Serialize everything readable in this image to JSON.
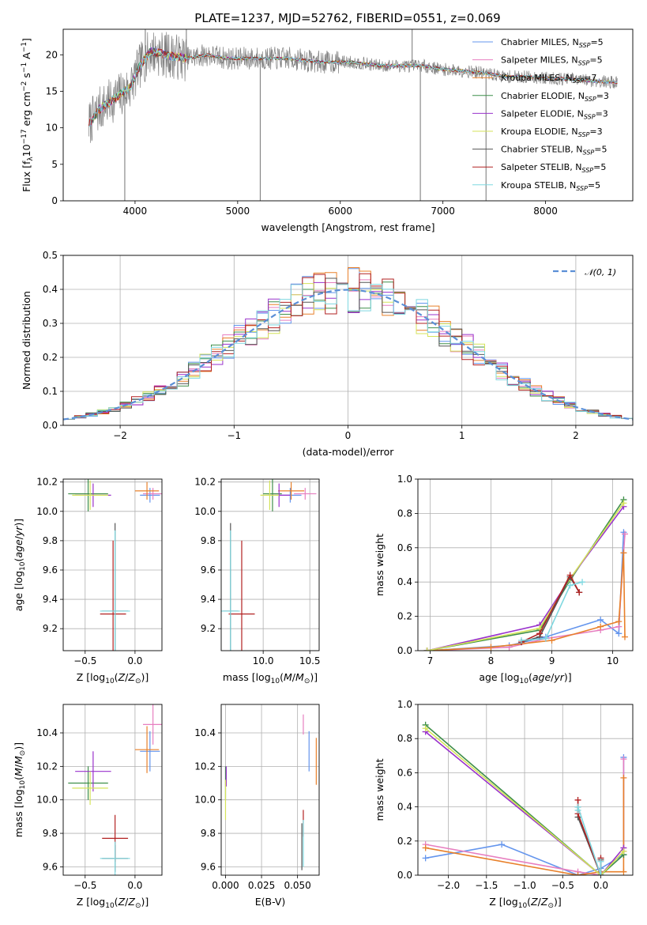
{
  "figure": {
    "title": "PLATE=1237, MJD=52762, FIBERID=0551, z=0.069"
  },
  "colors": {
    "Chabrier MILES": "#6495ed",
    "Salpeter MILES": "#e77fc0",
    "Kroupa MILES": "#e8802a",
    "Chabrier ELODIE": "#3f8f4a",
    "Salpeter ELODIE": "#9932cc",
    "Kroupa ELODIE": "#d4e35a",
    "Chabrier STELIB": "#555555",
    "Salpeter STELIB": "#b22222",
    "Kroupa STELIB": "#7fd8e0",
    "data": "#808080",
    "normal": "#5b8fd6"
  },
  "chart_data": [
    {
      "id": "spectrum",
      "type": "line",
      "xlabel": "wavelength [Angstrom, rest frame]",
      "ylabel": "Flux [f_λ 10^-17 erg cm^-2 s^-1 A^-1]",
      "xlim": [
        3300,
        8850
      ],
      "ylim": [
        0,
        23.5
      ],
      "xticks": [
        4000,
        5000,
        6000,
        7000,
        8000
      ],
      "yticks": [
        0,
        5,
        10,
        15,
        20
      ],
      "legend_position": "top-right",
      "legend": [
        {
          "label": "Chabrier MILES, N_SSP=5",
          "base": "Chabrier MILES, N",
          "sub": "SSP",
          "suffix": "=5",
          "color": "#6495ed"
        },
        {
          "label": "Salpeter MILES, N_SSP=5",
          "base": "Salpeter MILES, N",
          "sub": "SSP",
          "suffix": "=5",
          "color": "#e77fc0"
        },
        {
          "label": "Kroupa MILES, N_SSP=7",
          "base": "Kroupa MILES, N",
          "sub": "SSP",
          "suffix": "=7",
          "color": "#e8802a"
        },
        {
          "label": "Chabrier ELODIE, N_SSP=3",
          "base": "Chabrier ELODIE, N",
          "sub": "SSP",
          "suffix": "=3",
          "color": "#3f8f4a"
        },
        {
          "label": "Salpeter ELODIE, N_SSP=3",
          "base": "Salpeter ELODIE, N",
          "sub": "SSP",
          "suffix": "=3",
          "color": "#9932cc"
        },
        {
          "label": "Kroupa ELODIE, N_SSP=3",
          "base": "Kroupa ELODIE, N",
          "sub": "SSP",
          "suffix": "=3",
          "color": "#d4e35a"
        },
        {
          "label": "Chabrier STELIB, N_SSP=5",
          "base": "Chabrier STELIB, N",
          "sub": "SSP",
          "suffix": "=5",
          "color": "#555555"
        },
        {
          "label": "Salpeter STELIB, N_SSP=5",
          "base": "Salpeter STELIB, N",
          "sub": "SSP",
          "suffix": "=5",
          "color": "#b22222"
        },
        {
          "label": "Kroupa STELIB, N_SSP=5",
          "base": "Kroupa STELIB, N",
          "sub": "SSP",
          "suffix": "=5",
          "color": "#7fd8e0"
        }
      ],
      "continuum": [
        [
          3550,
          10.5
        ],
        [
          3650,
          12.5
        ],
        [
          3800,
          14
        ],
        [
          3950,
          15.5
        ],
        [
          4050,
          18.5
        ],
        [
          4150,
          20.5
        ],
        [
          4300,
          20
        ],
        [
          4500,
          19.5
        ],
        [
          4700,
          20
        ],
        [
          4900,
          19.5
        ],
        [
          5200,
          19.5
        ],
        [
          5500,
          19.5
        ],
        [
          5800,
          19
        ],
        [
          6100,
          19
        ],
        [
          6400,
          18.5
        ],
        [
          6600,
          18.5
        ],
        [
          6800,
          18.5
        ],
        [
          7000,
          18
        ],
        [
          7200,
          17.8
        ],
        [
          7400,
          17.5
        ],
        [
          7600,
          17
        ],
        [
          7800,
          17
        ],
        [
          8000,
          16.8
        ],
        [
          8200,
          16.7
        ],
        [
          8400,
          16.5
        ],
        [
          8600,
          16.3
        ],
        [
          8700,
          16.2
        ]
      ],
      "spikes": [
        [
          3900,
          0
        ],
        [
          5220,
          0
        ],
        [
          6780,
          0
        ],
        [
          7420,
          0
        ],
        [
          4100,
          23.5
        ],
        [
          4500,
          23.5
        ],
        [
          6700,
          23.5
        ]
      ]
    },
    {
      "id": "residuals",
      "type": "step",
      "xlabel": "(data-model)/error",
      "ylabel": "Normed distribution",
      "xlim": [
        -2.5,
        2.5
      ],
      "ylim": [
        0,
        0.5
      ],
      "xticks": [
        -2,
        -1,
        0,
        1,
        2
      ],
      "yticks": [
        0.0,
        0.1,
        0.2,
        0.3,
        0.4,
        0.5
      ],
      "legend_position": "top-right",
      "legend": [
        {
          "label": "𝒩(0, 1)",
          "color": "#5b8fd6",
          "style": "dashed"
        }
      ],
      "bin_width": 0.1
    },
    {
      "id": "age-vs-Z",
      "type": "errorbar",
      "xlabel": "Z [log10(Z/Z⊙)]",
      "ylabel": "age [log10(age/yr)]",
      "xlim": [
        -0.72,
        0.27
      ],
      "ylim": [
        9.05,
        10.22
      ],
      "xticks": [
        -0.5,
        0.0
      ],
      "yticks": [
        9.2,
        9.4,
        9.6,
        9.8,
        10.0,
        10.2
      ],
      "points": [
        {
          "model": "Chabrier MILES",
          "x": 0.15,
          "y": 10.11,
          "xerr": 0.1,
          "yerr": 0.05
        },
        {
          "model": "Salpeter MILES",
          "x": 0.18,
          "y": 10.12,
          "xerr": 0.1,
          "yerr": 0.04
        },
        {
          "model": "Kroupa MILES",
          "x": 0.12,
          "y": 10.14,
          "xerr": 0.12,
          "yerr": 0.06
        },
        {
          "model": "Chabrier ELODIE",
          "x": -0.47,
          "y": 10.12,
          "xerr": 0.2,
          "yerr": 0.12
        },
        {
          "model": "Salpeter ELODIE",
          "x": -0.42,
          "y": 10.11,
          "xerr": 0.18,
          "yerr": 0.08
        },
        {
          "model": "Kroupa ELODIE",
          "x": -0.45,
          "y": 10.11,
          "xerr": 0.18,
          "yerr": 0.1
        },
        {
          "model": "Chabrier STELIB",
          "x": -0.2,
          "y": 9.32,
          "xerr": 0.13,
          "yerr": 0.6
        },
        {
          "model": "Salpeter STELIB",
          "x": -0.22,
          "y": 9.3,
          "xerr": 0.13,
          "yerr": 0.5
        },
        {
          "model": "Kroupa STELIB",
          "x": -0.2,
          "y": 9.32,
          "xerr": 0.15,
          "yerr": 0.55
        }
      ]
    },
    {
      "id": "age-vs-mass",
      "type": "errorbar",
      "xlabel": "mass [log10(M/M⊙)]",
      "ylabel": "",
      "xlim": [
        9.55,
        10.6
      ],
      "ylim": [
        9.05,
        10.22
      ],
      "xticks": [
        10.0,
        10.5
      ],
      "yticks": [
        9.2,
        9.4,
        9.6,
        9.8,
        10.0,
        10.2
      ],
      "points": [
        {
          "model": "Chabrier MILES",
          "x": 10.29,
          "y": 10.11,
          "xerr": 0.12,
          "yerr": 0.05
        },
        {
          "model": "Salpeter MILES",
          "x": 10.45,
          "y": 10.12,
          "xerr": 0.12,
          "yerr": 0.04
        },
        {
          "model": "Kroupa MILES",
          "x": 10.3,
          "y": 10.14,
          "xerr": 0.14,
          "yerr": 0.06
        },
        {
          "model": "Chabrier ELODIE",
          "x": 10.1,
          "y": 10.12,
          "xerr": 0.1,
          "yerr": 0.12
        },
        {
          "model": "Salpeter ELODIE",
          "x": 10.17,
          "y": 10.11,
          "xerr": 0.12,
          "yerr": 0.08
        },
        {
          "model": "Kroupa ELODIE",
          "x": 10.07,
          "y": 10.11,
          "xerr": 0.1,
          "yerr": 0.1
        },
        {
          "model": "Chabrier STELIB",
          "x": 9.65,
          "y": 9.32,
          "xerr": 0.08,
          "yerr": 0.6
        },
        {
          "model": "Salpeter STELIB",
          "x": 9.77,
          "y": 9.3,
          "xerr": 0.14,
          "yerr": 0.5
        },
        {
          "model": "Kroupa STELIB",
          "x": 9.65,
          "y": 9.32,
          "xerr": 0.1,
          "yerr": 0.55
        }
      ]
    },
    {
      "id": "weight-vs-age",
      "type": "line",
      "xlabel": "age [log10(age/yr)]",
      "ylabel": "mass weight",
      "xlim": [
        6.8,
        10.33
      ],
      "ylim": [
        0,
        1.0
      ],
      "xticks": [
        7,
        8,
        9,
        10
      ],
      "yticks": [
        0.0,
        0.2,
        0.4,
        0.6,
        0.8,
        1.0
      ],
      "series": [
        {
          "model": "Chabrier MILES",
          "x": [
            6.95,
            8.3,
            8.9,
            9.8,
            10.1,
            10.18
          ],
          "y": [
            0.0,
            0.03,
            0.08,
            0.18,
            0.1,
            0.69
          ]
        },
        {
          "model": "Salpeter MILES",
          "x": [
            6.95,
            8.3,
            8.9,
            9.8,
            10.1,
            10.2
          ],
          "y": [
            0.0,
            0.02,
            0.07,
            0.12,
            0.14,
            0.68
          ]
        },
        {
          "model": "Kroupa MILES",
          "x": [
            6.95,
            8.0,
            9.0,
            9.8,
            10.1,
            10.18,
            10.2
          ],
          "y": [
            0.0,
            0.02,
            0.06,
            0.14,
            0.17,
            0.57,
            0.08
          ]
        },
        {
          "model": "Chabrier ELODIE",
          "x": [
            6.95,
            8.8,
            9.3,
            10.18
          ],
          "y": [
            0.0,
            0.12,
            0.41,
            0.88
          ]
        },
        {
          "model": "Salpeter ELODIE",
          "x": [
            6.95,
            8.8,
            9.3,
            10.18
          ],
          "y": [
            0.0,
            0.15,
            0.42,
            0.84
          ]
        },
        {
          "model": "Kroupa ELODIE",
          "x": [
            6.95,
            8.8,
            9.3,
            10.18
          ],
          "y": [
            0.0,
            0.13,
            0.42,
            0.86
          ]
        },
        {
          "model": "Chabrier STELIB",
          "x": [
            8.5,
            8.8,
            9.3,
            9.45
          ],
          "y": [
            0.05,
            0.08,
            0.43,
            0.34
          ]
        },
        {
          "model": "Salpeter STELIB",
          "x": [
            8.5,
            8.8,
            9.3,
            9.45
          ],
          "y": [
            0.05,
            0.1,
            0.44,
            0.34
          ]
        },
        {
          "model": "Kroupa STELIB",
          "x": [
            8.5,
            8.9,
            9.3,
            9.5
          ],
          "y": [
            0.06,
            0.07,
            0.38,
            0.4
          ]
        }
      ]
    },
    {
      "id": "mass-vs-Z",
      "type": "errorbar",
      "xlabel": "Z [log10(Z/Z⊙)]",
      "ylabel": "mass [log10(M/M⊙)]",
      "xlim": [
        -0.72,
        0.27
      ],
      "ylim": [
        9.55,
        10.57
      ],
      "xticks": [
        -0.5,
        0.0
      ],
      "yticks": [
        9.6,
        9.8,
        10.0,
        10.2,
        10.4
      ],
      "points": [
        {
          "model": "Chabrier MILES",
          "x": 0.15,
          "y": 10.29,
          "xerr": 0.1,
          "yerr": 0.12
        },
        {
          "model": "Salpeter MILES",
          "x": 0.18,
          "y": 10.45,
          "xerr": 0.1,
          "yerr": 0.12
        },
        {
          "model": "Kroupa MILES",
          "x": 0.12,
          "y": 10.3,
          "xerr": 0.12,
          "yerr": 0.14
        },
        {
          "model": "Chabrier ELODIE",
          "x": -0.47,
          "y": 10.1,
          "xerr": 0.2,
          "yerr": 0.1
        },
        {
          "model": "Salpeter ELODIE",
          "x": -0.42,
          "y": 10.17,
          "xerr": 0.18,
          "yerr": 0.12
        },
        {
          "model": "Kroupa ELODIE",
          "x": -0.45,
          "y": 10.07,
          "xerr": 0.18,
          "yerr": 0.1
        },
        {
          "model": "Chabrier STELIB",
          "x": -0.2,
          "y": 9.65,
          "xerr": 0.13,
          "yerr": 0.08
        },
        {
          "model": "Salpeter STELIB",
          "x": -0.2,
          "y": 9.77,
          "xerr": 0.13,
          "yerr": 0.14
        },
        {
          "model": "Kroupa STELIB",
          "x": -0.2,
          "y": 9.65,
          "xerr": 0.15,
          "yerr": 0.1
        }
      ]
    },
    {
      "id": "mass-vs-ebv",
      "type": "errorbar",
      "xlabel": "E(B-V)",
      "ylabel": "",
      "xlim": [
        -0.003,
        0.065
      ],
      "ylim": [
        9.55,
        10.57
      ],
      "xticks": [
        0.0,
        0.025,
        0.05
      ],
      "yticks": [
        9.6,
        9.8,
        10.0,
        10.2,
        10.4
      ],
      "points": [
        {
          "model": "Chabrier MILES",
          "x": 0.058,
          "y": 10.29,
          "xerr": 0.0,
          "yerr": 0.12
        },
        {
          "model": "Salpeter MILES",
          "x": 0.054,
          "y": 10.45,
          "xerr": 0.0,
          "yerr": 0.06
        },
        {
          "model": "Kroupa MILES",
          "x": 0.063,
          "y": 10.23,
          "xerr": 0.0,
          "yerr": 0.14
        },
        {
          "model": "Chabrier ELODIE",
          "x": 0.0,
          "y": 10.1,
          "xerr": 0.0,
          "yerr": 0.1
        },
        {
          "model": "Salpeter ELODIE",
          "x": 0.0005,
          "y": 10.14,
          "xerr": 0.0,
          "yerr": 0.06
        },
        {
          "model": "Kroupa ELODIE",
          "x": 0.0,
          "y": 10.0,
          "xerr": 0.0,
          "yerr": 0.12
        },
        {
          "model": "Chabrier STELIB",
          "x": 0.053,
          "y": 9.72,
          "xerr": 0.0,
          "yerr": 0.14
        },
        {
          "model": "Salpeter STELIB",
          "x": 0.054,
          "y": 9.86,
          "xerr": 0.0,
          "yerr": 0.08
        },
        {
          "model": "Kroupa STELIB",
          "x": 0.054,
          "y": 9.74,
          "xerr": 0.0,
          "yerr": 0.14
        }
      ]
    },
    {
      "id": "weight-vs-Z",
      "type": "line",
      "xlabel": "Z [log10(Z/Z⊙)]",
      "ylabel": "mass weight",
      "xlim": [
        -2.4,
        0.42
      ],
      "ylim": [
        0,
        1.0
      ],
      "xticks": [
        -2.0,
        -1.5,
        -1.0,
        -0.5,
        0.0
      ],
      "yticks": [
        0.0,
        0.2,
        0.4,
        0.6,
        0.8,
        1.0
      ],
      "series": [
        {
          "model": "Chabrier MILES",
          "x": [
            -2.3,
            -1.3,
            -0.3,
            0.0,
            0.3,
            0.3
          ],
          "y": [
            0.1,
            0.18,
            0.0,
            0.04,
            0.12,
            0.69
          ]
        },
        {
          "model": "Salpeter MILES",
          "x": [
            -2.3,
            -0.3,
            0.0,
            0.3,
            0.3
          ],
          "y": [
            0.18,
            0.02,
            0.0,
            0.14,
            0.68
          ]
        },
        {
          "model": "Kroupa MILES",
          "x": [
            -2.3,
            -0.3,
            0.0,
            0.3,
            0.3
          ],
          "y": [
            0.16,
            0.0,
            0.02,
            0.02,
            0.57
          ]
        },
        {
          "model": "Chabrier ELODIE",
          "x": [
            -2.3,
            0.0,
            0.3
          ],
          "y": [
            0.88,
            0.0,
            0.12
          ]
        },
        {
          "model": "Salpeter ELODIE",
          "x": [
            -2.3,
            0.0,
            0.3
          ],
          "y": [
            0.84,
            0.0,
            0.16
          ]
        },
        {
          "model": "Kroupa ELODIE",
          "x": [
            -2.3,
            0.0,
            0.3
          ],
          "y": [
            0.86,
            0.0,
            0.14
          ]
        },
        {
          "model": "Chabrier STELIB",
          "x": [
            -0.3,
            -0.3,
            0.0,
            0.0
          ],
          "y": [
            0.4,
            0.34,
            0.0,
            0.09
          ]
        },
        {
          "model": "Salpeter STELIB",
          "x": [
            -0.3,
            -0.3,
            0.0,
            0.0
          ],
          "y": [
            0.44,
            0.36,
            0.0,
            0.1
          ]
        },
        {
          "model": "Kroupa STELIB",
          "x": [
            -0.3,
            -0.3,
            0.0,
            0.0
          ],
          "y": [
            0.38,
            0.4,
            0.0,
            0.08
          ]
        }
      ]
    }
  ]
}
